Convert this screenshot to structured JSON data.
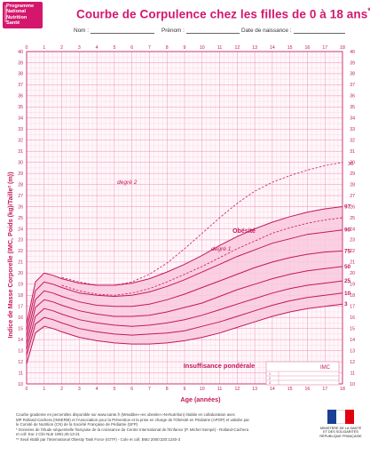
{
  "logo": {
    "line1": "Programme",
    "line2": "National",
    "line3": "Nutrition",
    "line4": "Santé"
  },
  "title": "Courbe de Corpulence chez les filles de 0 à 18 ans",
  "title_mark": "*",
  "fields": {
    "nom": "Nom :",
    "prenom": "Prénom :",
    "naissance": "Date de naissance :"
  },
  "chart_data": {
    "type": "line",
    "ylabel": "Indice de Masse Corporelle (IMC, Poids (kg)/Taille² (m))",
    "xlabel": "Age (années)",
    "xlim": [
      0,
      18
    ],
    "ylim": [
      10,
      40
    ],
    "grid": true,
    "x": [
      0,
      0.5,
      1,
      1.5,
      2,
      3,
      4,
      5,
      6,
      7,
      8,
      9,
      10,
      11,
      12,
      13,
      14,
      15,
      16,
      17,
      18
    ],
    "series": [
      {
        "name": "3",
        "values": [
          11.8,
          14.6,
          15.2,
          15.0,
          14.7,
          14.2,
          13.9,
          13.7,
          13.6,
          13.6,
          13.7,
          13.9,
          14.2,
          14.6,
          15.1,
          15.6,
          16.1,
          16.5,
          16.8,
          17.0,
          17.2
        ]
      },
      {
        "name": "10",
        "values": [
          12.6,
          15.4,
          16.0,
          15.8,
          15.5,
          15.0,
          14.7,
          14.5,
          14.4,
          14.5,
          14.6,
          14.8,
          15.2,
          15.6,
          16.1,
          16.6,
          17.1,
          17.5,
          17.8,
          18.0,
          18.2
        ]
      },
      {
        "name": "25",
        "values": [
          13.1,
          16.1,
          16.8,
          16.6,
          16.3,
          15.8,
          15.5,
          15.3,
          15.2,
          15.3,
          15.5,
          15.8,
          16.2,
          16.7,
          17.2,
          17.7,
          18.2,
          18.6,
          18.9,
          19.1,
          19.3
        ]
      },
      {
        "name": "50",
        "values": [
          13.6,
          16.9,
          17.6,
          17.4,
          17.1,
          16.6,
          16.3,
          16.1,
          16.1,
          16.2,
          16.5,
          16.9,
          17.3,
          17.9,
          18.5,
          19.0,
          19.5,
          19.9,
          20.2,
          20.4,
          20.6
        ]
      },
      {
        "name": "75",
        "values": [
          14.2,
          17.6,
          18.4,
          18.2,
          17.9,
          17.4,
          17.1,
          17.0,
          17.0,
          17.2,
          17.6,
          18.1,
          18.7,
          19.3,
          19.9,
          20.5,
          21.0,
          21.4,
          21.7,
          21.9,
          22.0
        ]
      },
      {
        "name": "90",
        "values": [
          14.8,
          18.4,
          19.2,
          19.0,
          18.7,
          18.2,
          18.0,
          17.9,
          18.0,
          18.3,
          18.8,
          19.4,
          20.1,
          20.8,
          21.5,
          22.1,
          22.7,
          23.1,
          23.5,
          23.7,
          23.9
        ]
      },
      {
        "name": "97",
        "values": [
          15.4,
          19.2,
          20.0,
          19.8,
          19.5,
          19.1,
          18.9,
          18.9,
          19.1,
          19.5,
          20.1,
          20.8,
          21.6,
          22.5,
          23.3,
          24.0,
          24.6,
          25.1,
          25.5,
          25.8,
          26.0
        ]
      },
      {
        "name": "degré 1",
        "values": [
          null,
          null,
          null,
          null,
          18.9,
          18.4,
          18.1,
          18.0,
          18.2,
          18.6,
          19.2,
          19.9,
          20.6,
          21.4,
          22.2,
          22.9,
          23.6,
          24.1,
          24.5,
          24.8,
          25.0
        ]
      },
      {
        "name": "degré 2",
        "values": [
          null,
          null,
          null,
          null,
          19.6,
          19.2,
          18.9,
          18.9,
          19.2,
          19.9,
          20.9,
          22.2,
          23.6,
          25.0,
          26.3,
          27.4,
          28.2,
          28.8,
          29.3,
          29.7,
          30.0
        ]
      }
    ],
    "labels": {
      "obesite": "Obésité",
      "degre1": "degré 1",
      "degre2": "degré 2",
      "insuffisance": "Insuffisance pondérale",
      "imc": "IMC"
    },
    "imc_rows": [
      "1",
      "2",
      "3"
    ],
    "mark_30": "30"
  },
  "footnote": [
    "Courbe gradiente en percentiles disponible sur www.sante.fr (Mmabbe»»es obesite»»N»Nutrition) établie en collaboration avec",
    "MP Rolland-Cachera (INSERM) et l'Association pour la Prévention et la prise en charge de l'Obésité en Pédiatrie (APOP) et validée par",
    "le Comité de Nutrition (CN) de la Société Française de Pédiatrie (SFP)",
    "* Données de l'étude séquentielle française de la croissance du Centre International de l'Enfance (P. Michel Sempé) - Rolland-Cachera",
    "et coll. Eur J Clin Nutr 1991;45:13-21",
    "** Seuil établi par l'International Obesity Task Force (IOTF) - Cole et coll. BMJ 2000;320:1240-3"
  ],
  "republic": {
    "line1": "MINISTÈRE DE LA SANTÉ",
    "line2": "ET DES SOLIDARITÉS",
    "line3": "RÉPUBLIQUE FRANÇAISE"
  },
  "colors": {
    "accent": "#d4176d",
    "grid_minor": "#f7c6d9",
    "grid_major": "#ef8fb6",
    "fill": "#f9c9dd",
    "curve": "#c2185b"
  }
}
